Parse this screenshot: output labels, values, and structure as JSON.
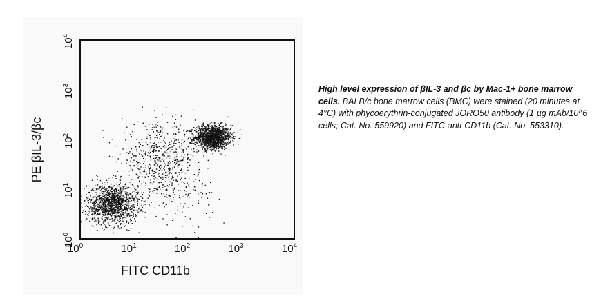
{
  "chart_data": {
    "type": "scatter",
    "xlabel": "FITC CD11b",
    "ylabel": "PE βIL-3/βc",
    "xscale": "log",
    "yscale": "log",
    "xlim": [
      1,
      10000
    ],
    "ylim": [
      1,
      10000
    ],
    "ticks": [
      {
        "base": "10",
        "exp": "0",
        "value": 1
      },
      {
        "base": "10",
        "exp": "1",
        "value": 10
      },
      {
        "base": "10",
        "exp": "2",
        "value": 100
      },
      {
        "base": "10",
        "exp": "3",
        "value": 1000
      },
      {
        "base": "10",
        "exp": "4",
        "value": 10000
      }
    ],
    "grid": false,
    "legend": "none",
    "point_color": "#111111",
    "clusters": [
      {
        "center_x": 300,
        "center_y": 110,
        "spread_log_x": 0.17,
        "spread_log_y": 0.12,
        "count": 1400
      },
      {
        "center_x": 4,
        "center_y": 5,
        "spread_log_x": 0.24,
        "spread_log_y": 0.2,
        "count": 1300
      },
      {
        "center_x": 30,
        "center_y": 40,
        "spread_log_x": 0.35,
        "spread_log_y": 0.35,
        "count": 550
      },
      {
        "center_x": 80,
        "center_y": 8,
        "spread_log_x": 0.3,
        "spread_log_y": 0.28,
        "count": 120
      }
    ]
  },
  "caption": {
    "title": "High level expression of βIL-3 and βc by Mac-1+ bone marrow cells.",
    "body": "BALB/c bone marrow cells (BMC) were stained (20 minutes at 4°C) with phycoerythrin-conjugated JORO50 antibody (1 µg mAb/10^6 cells; Cat. No. 559920) and FITC-anti-CD11b (Cat. No. 553310)."
  }
}
